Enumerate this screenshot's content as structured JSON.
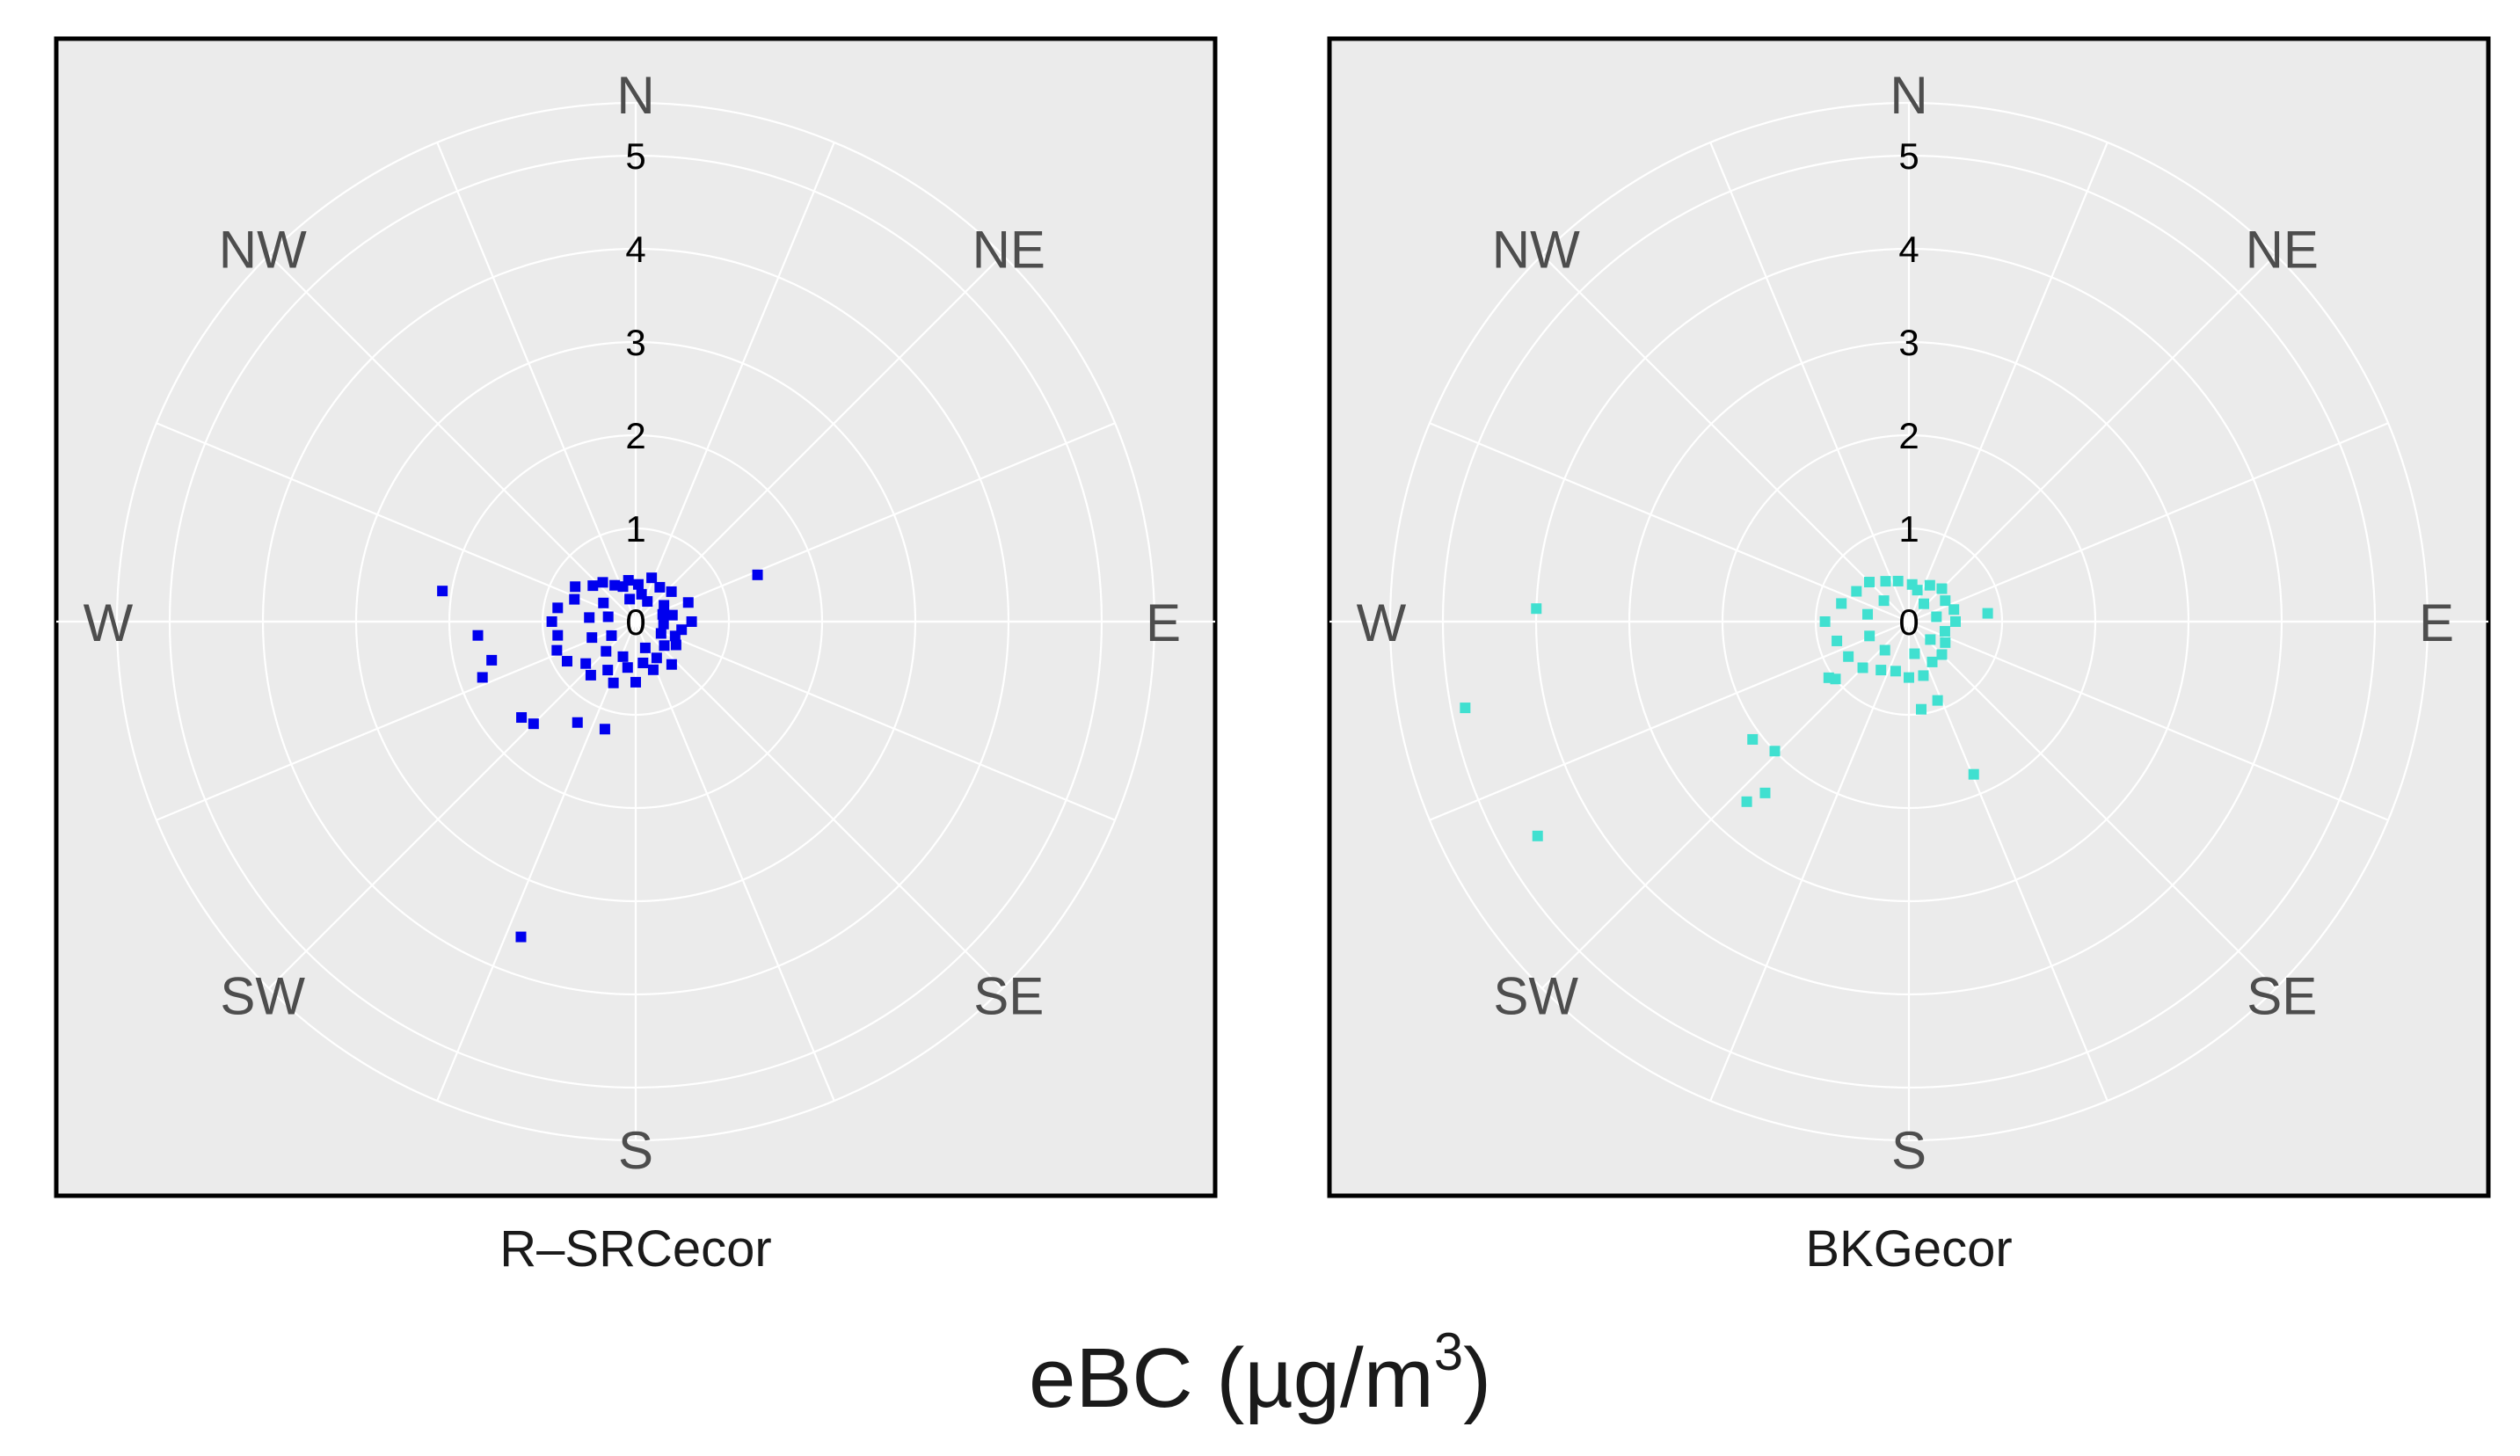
{
  "figure": {
    "ylabel_main": "eBC (µg/m",
    "ylabel_sup": "3",
    "ylabel_end": ")"
  },
  "chart_data": [
    {
      "type": "scatter",
      "projection": "polar",
      "title": "R–SRCecor",
      "color": "#0000ee",
      "radial_ticks": [
        "0",
        "1",
        "2",
        "3",
        "4",
        "5"
      ],
      "rmax": 5.5,
      "directions": [
        "N",
        "NE",
        "E",
        "SE",
        "S",
        "SW",
        "W",
        "NW"
      ],
      "points": [
        {
          "wd": 4,
          "ebc": 0.4
        },
        {
          "wd": 12,
          "ebc": 0.3
        },
        {
          "wd": 20,
          "ebc": 0.5
        },
        {
          "wd": 35,
          "ebc": 0.45
        },
        {
          "wd": 50,
          "ebc": 0.5
        },
        {
          "wd": 60,
          "ebc": 0.35
        },
        {
          "wd": 70,
          "ebc": 0.6
        },
        {
          "wd": 80,
          "ebc": 0.4
        },
        {
          "wd": 90,
          "ebc": 0.6
        },
        {
          "wd": 95,
          "ebc": 0.3
        },
        {
          "wd": 100,
          "ebc": 0.5
        },
        {
          "wd": 110,
          "ebc": 0.45
        },
        {
          "wd": 120,
          "ebc": 0.5
        },
        {
          "wd": 130,
          "ebc": 0.4
        },
        {
          "wd": 140,
          "ebc": 0.6
        },
        {
          "wd": 150,
          "ebc": 0.45
        },
        {
          "wd": 160,
          "ebc": 0.55
        },
        {
          "wd": 170,
          "ebc": 0.45
        },
        {
          "wd": 180,
          "ebc": 0.65
        },
        {
          "wd": 190,
          "ebc": 0.5
        },
        {
          "wd": 200,
          "ebc": 0.7
        },
        {
          "wd": 210,
          "ebc": 0.6
        },
        {
          "wd": 220,
          "ebc": 0.75
        },
        {
          "wd": 230,
          "ebc": 0.7
        },
        {
          "wd": 240,
          "ebc": 0.85
        },
        {
          "wd": 250,
          "ebc": 0.9
        },
        {
          "wd": 260,
          "ebc": 0.85
        },
        {
          "wd": 270,
          "ebc": 0.9
        },
        {
          "wd": 280,
          "ebc": 0.85
        },
        {
          "wd": 290,
          "ebc": 0.7
        },
        {
          "wd": 300,
          "ebc": 0.75
        },
        {
          "wd": 310,
          "ebc": 0.6
        },
        {
          "wd": 320,
          "ebc": 0.55
        },
        {
          "wd": 330,
          "ebc": 0.45
        },
        {
          "wd": 340,
          "ebc": 0.4
        },
        {
          "wd": 350,
          "ebc": 0.45
        },
        {
          "wd": 200,
          "ebc": 0.4
        },
        {
          "wd": 225,
          "ebc": 0.45
        },
        {
          "wd": 250,
          "ebc": 0.5
        },
        {
          "wd": 275,
          "ebc": 0.5
        },
        {
          "wd": 300,
          "ebc": 0.4
        },
        {
          "wd": 160,
          "ebc": 0.3
        },
        {
          "wd": 115,
          "ebc": 0.3
        },
        {
          "wd": 75,
          "ebc": 0.3
        },
        {
          "wd": 30,
          "ebc": 0.25
        },
        {
          "wd": 345,
          "ebc": 0.25
        },
        {
          "wd": 240,
          "ebc": 0.3
        },
        {
          "wd": 280,
          "ebc": 0.3
        },
        {
          "wd": 255,
          "ebc": 1.6
        },
        {
          "wd": 230,
          "ebc": 1.6
        },
        {
          "wd": 225,
          "ebc": 1.55
        },
        {
          "wd": 210,
          "ebc": 1.25
        },
        {
          "wd": 196,
          "ebc": 1.2
        },
        {
          "wd": 265,
          "ebc": 1.7
        },
        {
          "wd": 250,
          "ebc": 1.75
        },
        {
          "wd": 279,
          "ebc": 2.1
        },
        {
          "wd": 69,
          "ebc": 1.4
        },
        {
          "wd": 200,
          "ebc": 3.6
        }
      ]
    },
    {
      "type": "scatter",
      "projection": "polar",
      "title": "BKGecor",
      "color": "#40e0d0",
      "radial_ticks": [
        "0",
        "1",
        "2",
        "3",
        "4",
        "5"
      ],
      "rmax": 5.5,
      "directions": [
        "N",
        "NE",
        "E",
        "SE",
        "S",
        "SW",
        "W",
        "NW"
      ],
      "points": [
        {
          "wd": 5,
          "ebc": 0.4
        },
        {
          "wd": 15,
          "ebc": 0.35
        },
        {
          "wd": 30,
          "ebc": 0.45
        },
        {
          "wd": 45,
          "ebc": 0.5
        },
        {
          "wd": 60,
          "ebc": 0.45
        },
        {
          "wd": 75,
          "ebc": 0.5
        },
        {
          "wd": 90,
          "ebc": 0.5
        },
        {
          "wd": 105,
          "ebc": 0.4
        },
        {
          "wd": 120,
          "ebc": 0.45
        },
        {
          "wd": 135,
          "ebc": 0.5
        },
        {
          "wd": 150,
          "ebc": 0.5
        },
        {
          "wd": 165,
          "ebc": 0.6
        },
        {
          "wd": 180,
          "ebc": 0.6
        },
        {
          "wd": 195,
          "ebc": 0.55
        },
        {
          "wd": 210,
          "ebc": 0.6
        },
        {
          "wd": 225,
          "ebc": 0.7
        },
        {
          "wd": 240,
          "ebc": 0.75
        },
        {
          "wd": 255,
          "ebc": 0.8
        },
        {
          "wd": 270,
          "ebc": 0.9
        },
        {
          "wd": 285,
          "ebc": 0.75
        },
        {
          "wd": 300,
          "ebc": 0.65
        },
        {
          "wd": 315,
          "ebc": 0.6
        },
        {
          "wd": 330,
          "ebc": 0.5
        },
        {
          "wd": 345,
          "ebc": 0.45
        },
        {
          "wd": 220,
          "ebc": 0.4
        },
        {
          "wd": 250,
          "ebc": 0.45
        },
        {
          "wd": 280,
          "ebc": 0.45
        },
        {
          "wd": 310,
          "ebc": 0.35
        },
        {
          "wd": 170,
          "ebc": 0.35
        },
        {
          "wd": 130,
          "ebc": 0.3
        },
        {
          "wd": 80,
          "ebc": 0.3
        },
        {
          "wd": 40,
          "ebc": 0.25
        },
        {
          "wd": 235,
          "ebc": 1.05
        },
        {
          "wd": 232,
          "ebc": 1.0
        },
        {
          "wd": 172,
          "ebc": 0.95
        },
        {
          "wd": 160,
          "ebc": 0.9
        },
        {
          "wd": 84,
          "ebc": 0.85
        },
        {
          "wd": 157,
          "ebc": 1.78
        },
        {
          "wd": 226,
          "ebc": 2.0
        },
        {
          "wd": 233,
          "ebc": 2.1
        },
        {
          "wd": 220,
          "ebc": 2.4
        },
        {
          "wd": 222,
          "ebc": 2.6
        },
        {
          "wd": 272,
          "ebc": 4.0
        },
        {
          "wd": 240,
          "ebc": 4.6
        },
        {
          "wd": 259,
          "ebc": 4.85
        }
      ]
    }
  ]
}
